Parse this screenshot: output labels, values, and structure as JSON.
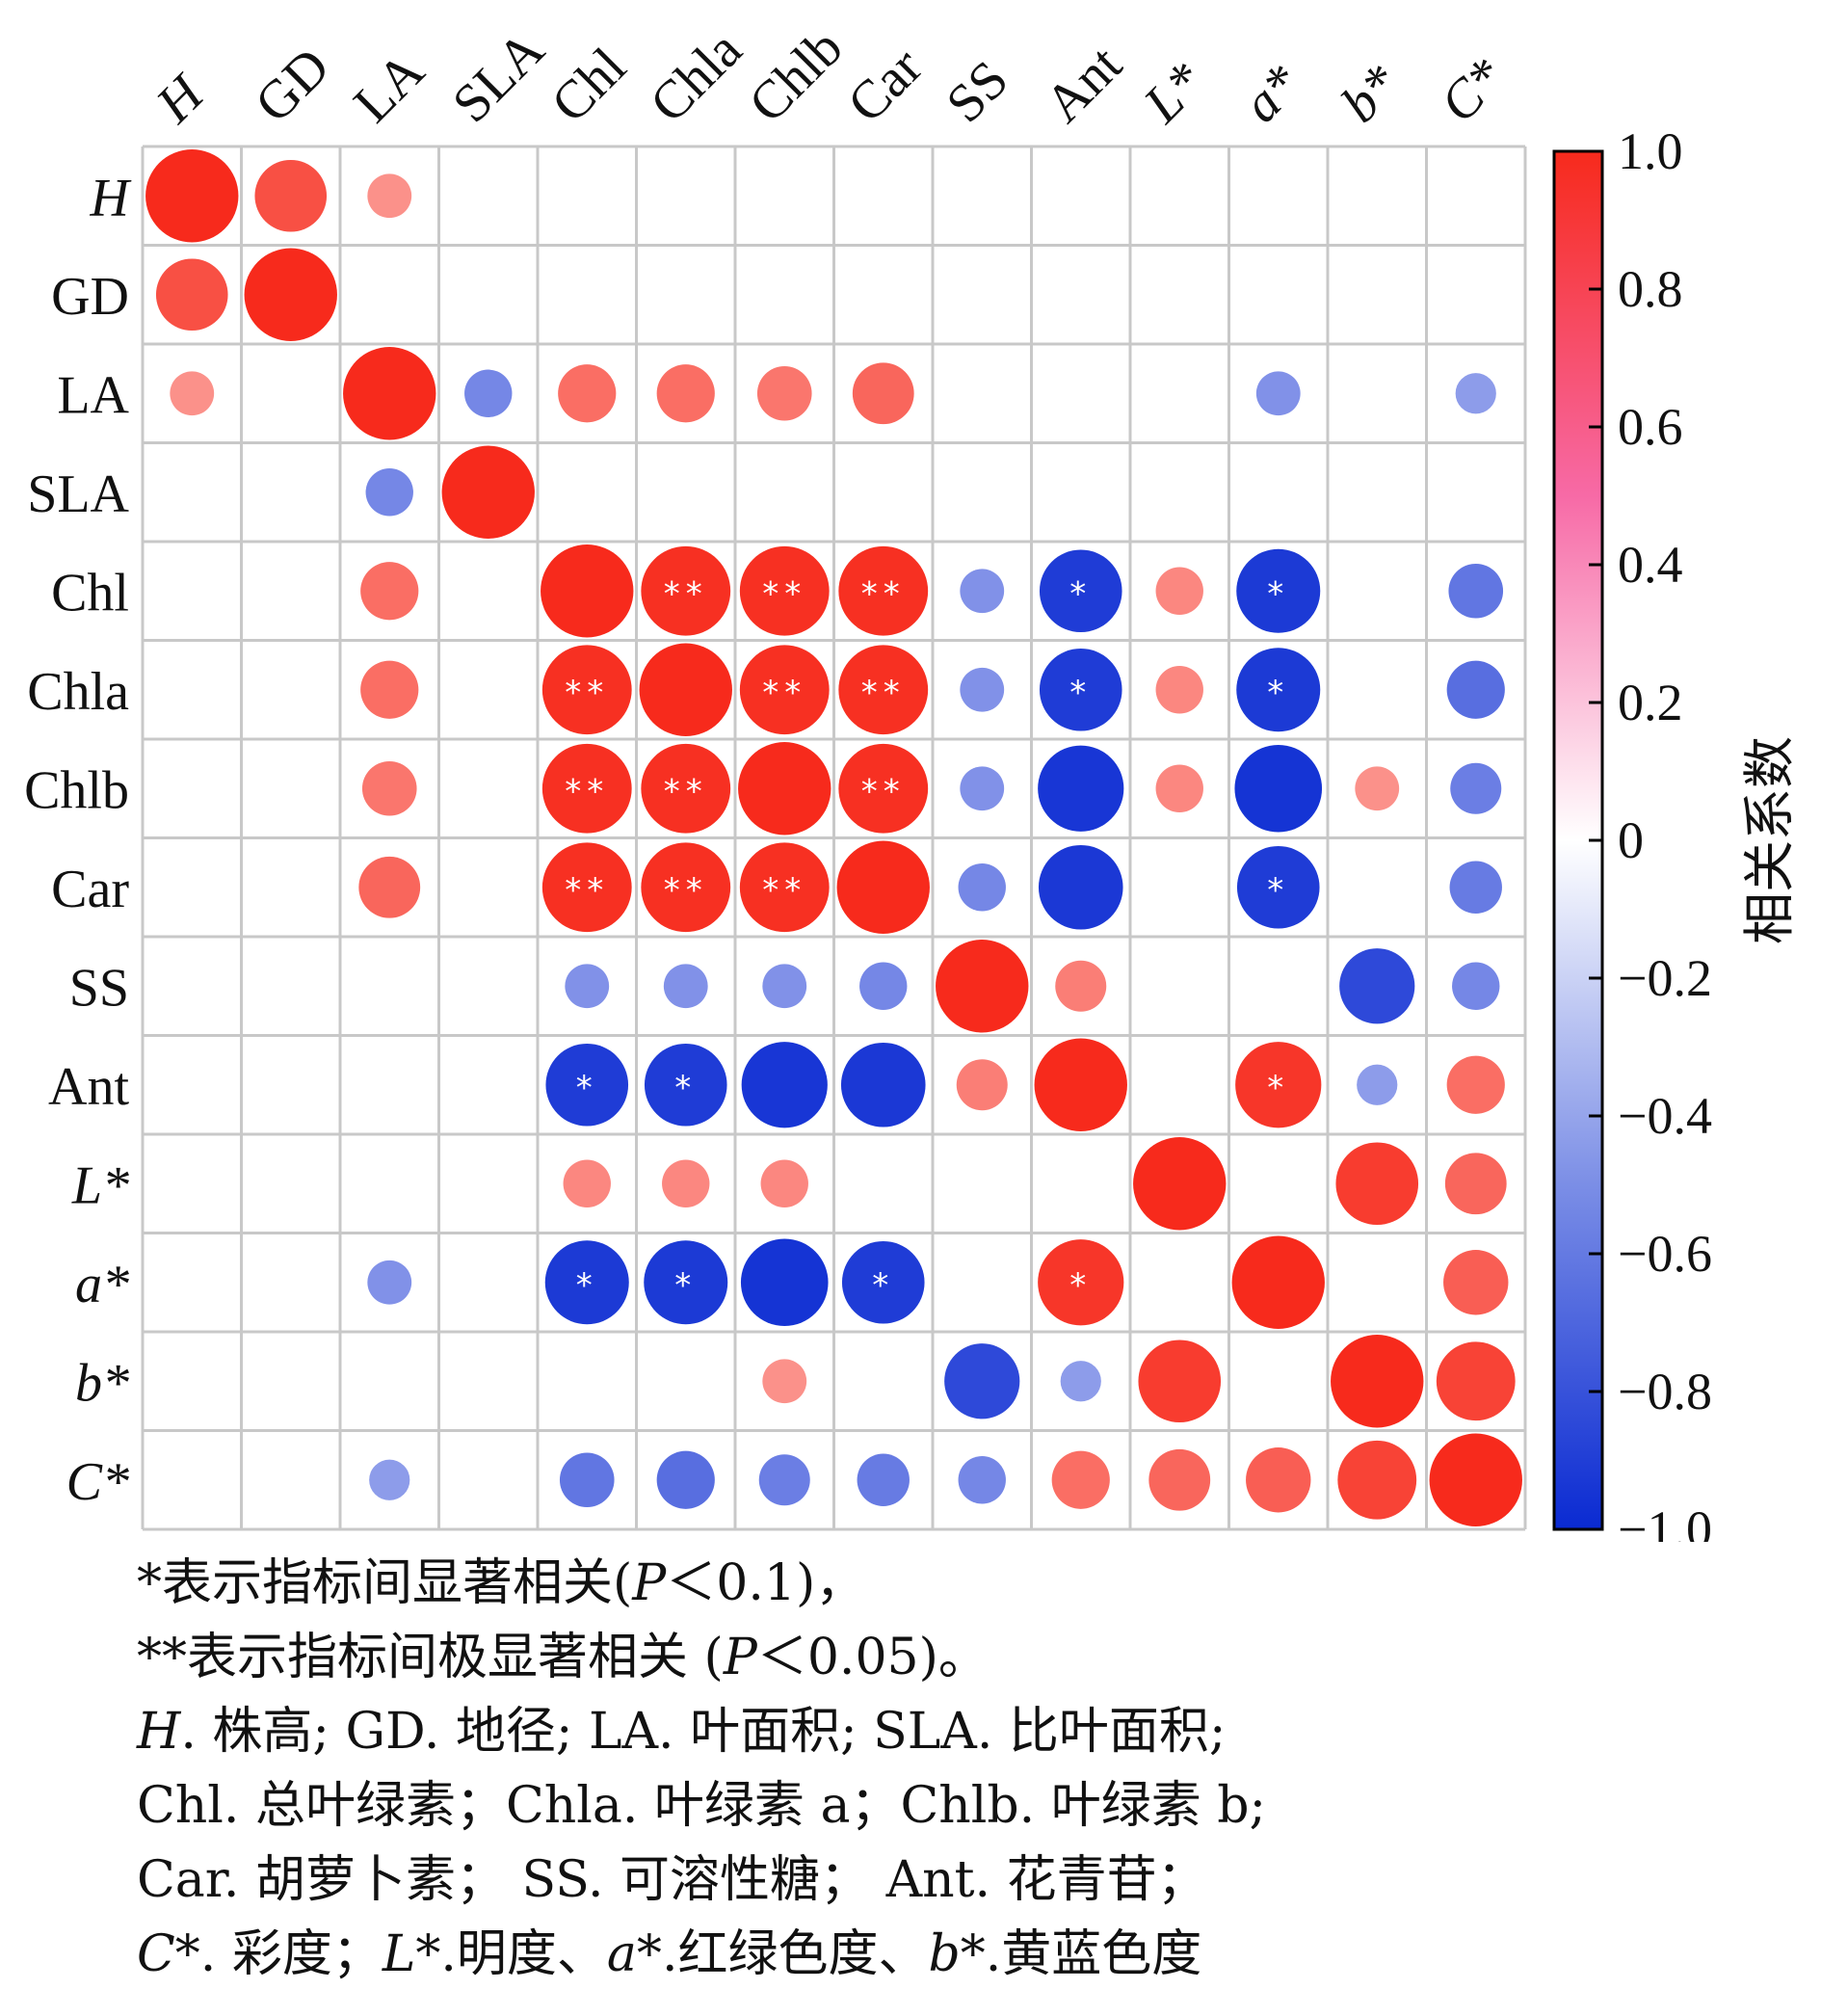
{
  "chart_data": {
    "type": "heatmap",
    "subtype": "correlation-circle-matrix",
    "variables": [
      {
        "name": "H",
        "italic": true
      },
      {
        "name": "GD",
        "italic": false
      },
      {
        "name": "LA",
        "italic": false
      },
      {
        "name": "SLA",
        "italic": false
      },
      {
        "name": "Chl",
        "italic": false
      },
      {
        "name": "Chla",
        "italic": false
      },
      {
        "name": "Chlb",
        "italic": false
      },
      {
        "name": "Car",
        "italic": false
      },
      {
        "name": "SS",
        "italic": false
      },
      {
        "name": "Ant",
        "italic": false
      },
      {
        "name": "L*",
        "italic": true
      },
      {
        "name": "a*",
        "italic": true
      },
      {
        "name": "b*",
        "italic": true
      },
      {
        "name": "C*",
        "italic": true
      }
    ],
    "matrix": [
      [
        1.0,
        0.7,
        0.3,
        null,
        null,
        null,
        null,
        null,
        null,
        null,
        null,
        null,
        null,
        null
      ],
      [
        0.7,
        1.0,
        null,
        null,
        null,
        null,
        null,
        null,
        null,
        null,
        null,
        null,
        null,
        null
      ],
      [
        0.3,
        null,
        1.0,
        -0.35,
        0.5,
        0.5,
        0.45,
        0.55,
        null,
        null,
        null,
        -0.3,
        null,
        -0.25
      ],
      [
        null,
        null,
        -0.35,
        1.0,
        null,
        null,
        null,
        null,
        null,
        null,
        null,
        null,
        null,
        null
      ],
      [
        null,
        null,
        0.5,
        null,
        1.0,
        0.95,
        0.95,
        0.95,
        -0.3,
        -0.85,
        0.35,
        -0.87,
        null,
        -0.45
      ],
      [
        null,
        null,
        0.5,
        null,
        0.95,
        1.0,
        0.95,
        0.95,
        -0.3,
        -0.85,
        0.35,
        -0.87,
        null,
        -0.5
      ],
      [
        null,
        null,
        0.45,
        null,
        0.95,
        0.95,
        1.0,
        0.95,
        -0.3,
        -0.9,
        0.35,
        -0.92,
        0.3,
        -0.4
      ],
      [
        null,
        null,
        0.55,
        null,
        0.95,
        0.95,
        0.95,
        1.0,
        -0.35,
        -0.88,
        null,
        -0.85,
        null,
        -0.42
      ],
      [
        null,
        null,
        null,
        null,
        -0.3,
        -0.3,
        -0.3,
        -0.35,
        1.0,
        0.4,
        null,
        null,
        -0.75,
        -0.35
      ],
      [
        null,
        null,
        null,
        null,
        -0.85,
        -0.85,
        -0.9,
        -0.88,
        0.4,
        1.0,
        null,
        0.9,
        -0.25,
        0.5
      ],
      [
        null,
        null,
        null,
        null,
        0.35,
        0.35,
        0.35,
        null,
        null,
        null,
        1.0,
        null,
        0.85,
        0.55
      ],
      [
        null,
        null,
        -0.3,
        null,
        -0.87,
        -0.87,
        -0.92,
        -0.85,
        null,
        0.9,
        null,
        1.0,
        null,
        0.6
      ],
      [
        null,
        null,
        null,
        null,
        null,
        null,
        0.3,
        null,
        -0.75,
        -0.25,
        0.85,
        null,
        1.0,
        0.8
      ],
      [
        null,
        null,
        -0.25,
        null,
        -0.45,
        -0.5,
        -0.4,
        -0.42,
        -0.35,
        0.5,
        0.55,
        0.6,
        0.8,
        1.0
      ]
    ],
    "significance": [
      [
        null,
        null,
        null,
        null,
        null,
        null,
        null,
        null,
        null,
        null,
        null,
        null,
        null,
        null
      ],
      [
        null,
        null,
        null,
        null,
        null,
        null,
        null,
        null,
        null,
        null,
        null,
        null,
        null,
        null
      ],
      [
        null,
        null,
        null,
        null,
        null,
        null,
        null,
        null,
        null,
        null,
        null,
        null,
        null,
        null
      ],
      [
        null,
        null,
        null,
        null,
        null,
        null,
        null,
        null,
        null,
        null,
        null,
        null,
        null,
        null
      ],
      [
        null,
        null,
        null,
        null,
        null,
        "**",
        "**",
        "**",
        null,
        "*",
        null,
        "*",
        null,
        null
      ],
      [
        null,
        null,
        null,
        null,
        "**",
        null,
        "**",
        "**",
        null,
        "*",
        null,
        "*",
        null,
        null
      ],
      [
        null,
        null,
        null,
        null,
        "**",
        "**",
        null,
        "**",
        null,
        null,
        null,
        null,
        null,
        null
      ],
      [
        null,
        null,
        null,
        null,
        "**",
        "**",
        "**",
        null,
        null,
        null,
        null,
        "*",
        null,
        null
      ],
      [
        null,
        null,
        null,
        null,
        null,
        null,
        null,
        null,
        null,
        null,
        null,
        null,
        null,
        null
      ],
      [
        null,
        null,
        null,
        null,
        "*",
        "*",
        null,
        null,
        null,
        null,
        null,
        "*",
        null,
        null
      ],
      [
        null,
        null,
        null,
        null,
        null,
        null,
        null,
        null,
        null,
        null,
        null,
        null,
        null,
        null
      ],
      [
        null,
        null,
        null,
        null,
        "*",
        "*",
        null,
        "*",
        null,
        "*",
        null,
        null,
        null,
        null
      ],
      [
        null,
        null,
        null,
        null,
        null,
        null,
        null,
        null,
        null,
        null,
        null,
        null,
        null,
        null
      ],
      [
        null,
        null,
        null,
        null,
        null,
        null,
        null,
        null,
        null,
        null,
        null,
        null,
        null,
        null
      ]
    ],
    "colorbar": {
      "label": "相关系数",
      "ticks": [
        "1.0",
        "0.8",
        "0.6",
        "0.4",
        "0.2",
        "0",
        "−0.2",
        "−0.4",
        "−0.6",
        "−0.8",
        "−1.0"
      ],
      "range": [
        -1.0,
        1.0
      ],
      "colors": {
        "positive": "#f72a1c",
        "mid": "#ffffff",
        "negative": "#0a2ad2"
      }
    },
    "grid": true
  },
  "footnote": {
    "sig1_star": "*",
    "sig1_text": "表示指标间显著相关(",
    "sig1_p": "P",
    "sig1_end": "＜0.1)，",
    "sig2_star": "**",
    "sig2_text": "表示指标间极显著相关 (",
    "sig2_p": "P",
    "sig2_end": "＜0.05)。",
    "l3_h": "H",
    "l3_rest": ". 株高; GD. 地径; LA. 叶面积; SLA. 比叶面积;",
    "l4": "Chl. 总叶绿素；Chla. 叶绿素 a；Chlb. 叶绿素 b;",
    "l5": "Car. 胡萝卜素； SS. 可溶性糖； Ant. 花青苷；",
    "l6_c": "C*",
    "l6_a": ". 彩度；",
    "l6_l": "L*",
    "l6_b": ".明度、",
    "l6_astar": "a*",
    "l6_c2": ".红绿色度、",
    "l6_bstar": "b*",
    "l6_d": ".黄蓝色度"
  }
}
